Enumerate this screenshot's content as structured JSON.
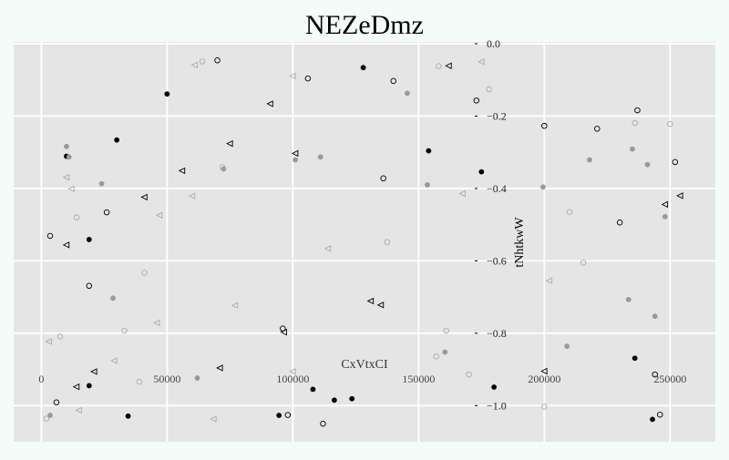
{
  "chart_data": {
    "type": "scatter",
    "title": "NEZeDmz",
    "xlabel": "CxVtxCI",
    "ylabel": "tNhtkwW",
    "xlim": [
      -11000,
      268000
    ],
    "ylim": [
      -1.1,
      0.005
    ],
    "x_ticks": [
      0,
      50000,
      100000,
      150000,
      200000,
      250000
    ],
    "x_tick_labels": [
      "0",
      "50000",
      "100000",
      "150000",
      "200000",
      "250000"
    ],
    "y_ticks": [
      0.0,
      -0.2,
      -0.4,
      -0.6,
      -0.8,
      -1.0
    ],
    "y_tick_labels": [
      "0.0",
      "−0.2",
      "−0.4",
      "−0.6",
      "−0.8",
      "−1.0"
    ],
    "grid": true,
    "background": "#e5e5e5",
    "grid_color": "#ffffff",
    "series": [
      {
        "marker": "filled-circle",
        "color": "#000000",
        "points": [
          [
            50000,
            -0.139
          ],
          [
            128000,
            -0.066
          ],
          [
            30000,
            -0.266
          ],
          [
            10000,
            -0.311
          ],
          [
            154000,
            -0.296
          ],
          [
            175000,
            -0.354
          ],
          [
            19000,
            -0.541
          ],
          [
            19000,
            -0.945
          ],
          [
            34500,
            -1.029
          ],
          [
            94500,
            -1.027
          ],
          [
            108000,
            -0.955
          ],
          [
            116500,
            -0.985
          ],
          [
            123500,
            -0.981
          ],
          [
            180000,
            -0.949
          ],
          [
            236000,
            -0.869
          ],
          [
            243000,
            -1.038
          ]
        ]
      },
      {
        "marker": "filled-circle",
        "color": "#999999",
        "points": [
          [
            10000,
            -0.284
          ],
          [
            11000,
            -0.313
          ],
          [
            24000,
            -0.387
          ],
          [
            72500,
            -0.346
          ],
          [
            101000,
            -0.321
          ],
          [
            111000,
            -0.313
          ],
          [
            145500,
            -0.137
          ],
          [
            153500,
            -0.39
          ],
          [
            28500,
            -0.703
          ],
          [
            62000,
            -0.924
          ],
          [
            3500,
            -1.027
          ],
          [
            160500,
            -0.852
          ],
          [
            199500,
            -0.396
          ],
          [
            218000,
            -0.321
          ],
          [
            235000,
            -0.291
          ],
          [
            241000,
            -0.334
          ],
          [
            248000,
            -0.478
          ],
          [
            233500,
            -0.707
          ],
          [
            244000,
            -0.753
          ],
          [
            209000,
            -0.836
          ]
        ]
      },
      {
        "marker": "open-circle",
        "color": "#000000",
        "points": [
          [
            70000,
            -0.046
          ],
          [
            106000,
            -0.096
          ],
          [
            140000,
            -0.103
          ],
          [
            173000,
            -0.157
          ],
          [
            200000,
            -0.227
          ],
          [
            221000,
            -0.235
          ],
          [
            237000,
            -0.184
          ],
          [
            252000,
            -0.327
          ],
          [
            136000,
            -0.372
          ],
          [
            26000,
            -0.466
          ],
          [
            3500,
            -0.531
          ],
          [
            19000,
            -0.669
          ],
          [
            96000,
            -0.787
          ],
          [
            6000,
            -0.991
          ],
          [
            98000,
            -1.026
          ],
          [
            112000,
            -1.05
          ],
          [
            230000,
            -0.494
          ],
          [
            244000,
            -0.914
          ],
          [
            246000,
            -1.025
          ]
        ]
      },
      {
        "marker": "open-circle",
        "color": "#aaaaaa",
        "points": [
          [
            64000,
            -0.049
          ],
          [
            158000,
            -0.062
          ],
          [
            178000,
            -0.126
          ],
          [
            236000,
            -0.219
          ],
          [
            250000,
            -0.222
          ],
          [
            72000,
            -0.341
          ],
          [
            14000,
            -0.48
          ],
          [
            41000,
            -0.633
          ],
          [
            33000,
            -0.793
          ],
          [
            137500,
            -0.548
          ],
          [
            161000,
            -0.793
          ],
          [
            157000,
            -0.864
          ],
          [
            170000,
            -0.914
          ],
          [
            7500,
            -0.809
          ],
          [
            39000,
            -0.934
          ],
          [
            2000,
            -1.036
          ],
          [
            210000,
            -0.465
          ],
          [
            215500,
            -0.605
          ],
          [
            200000,
            -1.003
          ]
        ]
      },
      {
        "marker": "open-triangle-left",
        "color": "#000000",
        "points": [
          [
            162000,
            -0.061
          ],
          [
            91000,
            -0.166
          ],
          [
            75000,
            -0.276
          ],
          [
            101000,
            -0.303
          ],
          [
            56000,
            -0.351
          ],
          [
            41000,
            -0.424
          ],
          [
            10000,
            -0.556
          ],
          [
            254000,
            -0.42
          ],
          [
            248000,
            -0.444
          ],
          [
            131000,
            -0.711
          ],
          [
            135000,
            -0.722
          ],
          [
            96500,
            -0.797
          ],
          [
            71000,
            -0.896
          ],
          [
            21000,
            -0.906
          ],
          [
            14000,
            -0.948
          ],
          [
            200000,
            -0.905
          ]
        ]
      },
      {
        "marker": "open-triangle-left",
        "color": "#aaaaaa",
        "points": [
          [
            61000,
            -0.059
          ],
          [
            100000,
            -0.089
          ],
          [
            175000,
            -0.05
          ],
          [
            10000,
            -0.369
          ],
          [
            12000,
            -0.401
          ],
          [
            60000,
            -0.421
          ],
          [
            47000,
            -0.474
          ],
          [
            167500,
            -0.414
          ],
          [
            114000,
            -0.566
          ],
          [
            46000,
            -0.771
          ],
          [
            77000,
            -0.723
          ],
          [
            3000,
            -0.823
          ],
          [
            29000,
            -0.876
          ],
          [
            15000,
            -1.013
          ],
          [
            68500,
            -1.037
          ],
          [
            100000,
            -0.906
          ],
          [
            202000,
            -0.655
          ]
        ]
      }
    ]
  }
}
